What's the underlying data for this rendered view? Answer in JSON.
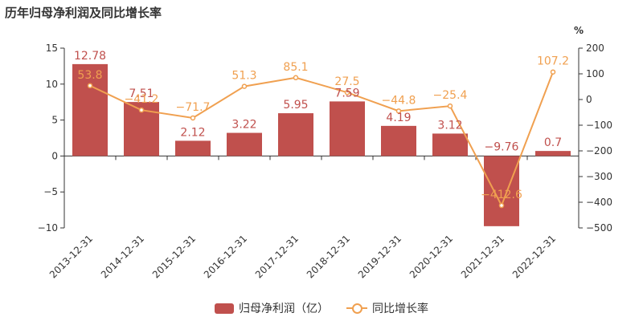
{
  "title": "历年归母净利润及同比增长率",
  "colors": {
    "bar": "#c0504d",
    "line": "#f0a050",
    "axis": "#333333",
    "grid": "#e6e6e6"
  },
  "chart_data": {
    "type": "bar",
    "categories": [
      "2013-12-31",
      "2014-12-31",
      "2015-12-31",
      "2016-12-31",
      "2017-12-31",
      "2018-12-31",
      "2019-12-31",
      "2020-12-31",
      "2021-12-31",
      "2022-12-31"
    ],
    "series": [
      {
        "name": "归母净利润（亿）",
        "type": "bar",
        "axis": "left",
        "values": [
          12.78,
          7.51,
          2.12,
          3.22,
          5.95,
          7.59,
          4.19,
          3.12,
          -9.76,
          0.7
        ],
        "labels": [
          "12.78",
          "7.51",
          "2.12",
          "3.22",
          "5.95",
          "7.59",
          "4.19",
          "3.12",
          "−9.76",
          "0.7"
        ]
      },
      {
        "name": "同比增长率",
        "type": "line",
        "axis": "right",
        "values": [
          53.8,
          -41.2,
          -71.7,
          51.3,
          85.1,
          27.5,
          -44.8,
          -25.4,
          -412.6,
          107.2
        ],
        "labels": [
          "53.8",
          "−41.2",
          "−71.7",
          "51.3",
          "85.1",
          "27.5",
          "−44.8",
          "−25.4",
          "−412.6",
          "107.2"
        ]
      }
    ],
    "left_axis": {
      "ylim": [
        -10,
        15
      ],
      "ticks": [
        -10,
        -5,
        0,
        5,
        10,
        15
      ],
      "tick_labels": [
        "−10",
        "−5",
        "0",
        "5",
        "10",
        "15"
      ]
    },
    "right_axis": {
      "unit": "%",
      "ylim": [
        -500,
        200
      ],
      "ticks": [
        -500,
        -400,
        -300,
        -200,
        -100,
        0,
        100,
        200
      ],
      "tick_labels": [
        "−500",
        "−400",
        "−300",
        "−200",
        "−100",
        "0",
        "100",
        "200"
      ]
    },
    "legend": "bottom",
    "grid": false
  }
}
